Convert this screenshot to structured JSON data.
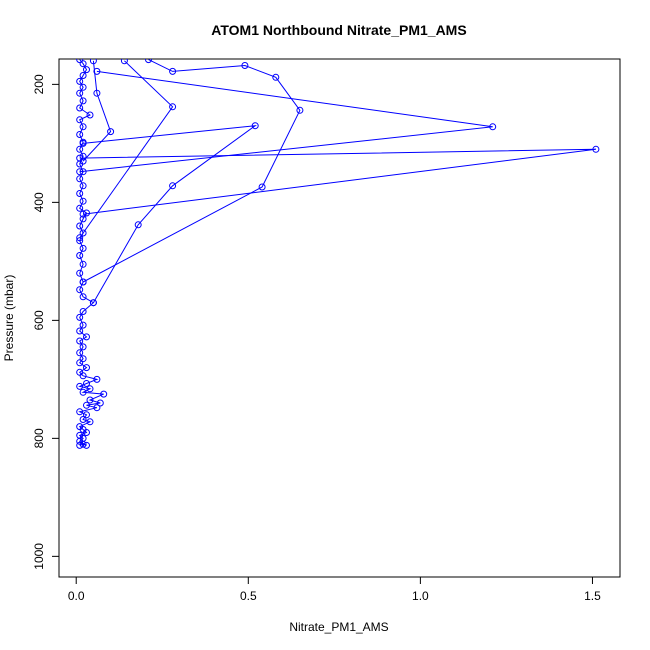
{
  "chart_data": {
    "type": "line",
    "title": "ATOM1 Northbound Nitrate_PM1_AMS",
    "xlabel": "Nitrate_PM1_AMS",
    "ylabel": "Pressure (mbar)",
    "xlim": [
      -0.05,
      1.58
    ],
    "ylim": [
      1035,
      157
    ],
    "y_reversed": true,
    "grid": false,
    "x_ticks": [
      {
        "value": 0,
        "label": "0.0"
      },
      {
        "value": 0.5,
        "label": "0.5"
      },
      {
        "value": 1.0,
        "label": "1.0"
      },
      {
        "value": 1.5,
        "label": "1.5"
      }
    ],
    "y_ticks": [
      {
        "value": 200,
        "label": "200"
      },
      {
        "value": 400,
        "label": "400"
      },
      {
        "value": 600,
        "label": "600"
      },
      {
        "value": 800,
        "label": "800"
      },
      {
        "value": 1000,
        "label": "1000"
      }
    ],
    "series_color": "#0000ff",
    "series": [
      {
        "points": [
          [
            0.01,
            812
          ],
          [
            0.02,
            810
          ],
          [
            0.03,
            812
          ],
          [
            0.01,
            805
          ],
          [
            0.02,
            800
          ],
          [
            0.01,
            795
          ],
          [
            0.03,
            790
          ],
          [
            0.02,
            785
          ],
          [
            0.01,
            780
          ],
          [
            0.04,
            772
          ],
          [
            0.02,
            768
          ],
          [
            0.03,
            760
          ],
          [
            0.01,
            755
          ],
          [
            0.06,
            748
          ],
          [
            0.03,
            744
          ],
          [
            0.07,
            740
          ],
          [
            0.04,
            735
          ],
          [
            0.08,
            725
          ],
          [
            0.02,
            722
          ],
          [
            0.04,
            716
          ],
          [
            0.01,
            712
          ],
          [
            0.03,
            707
          ],
          [
            0.06,
            700
          ],
          [
            0.02,
            694
          ],
          [
            0.01,
            688
          ],
          [
            0.03,
            680
          ],
          [
            0.01,
            672
          ],
          [
            0.02,
            665
          ],
          [
            0.01,
            655
          ],
          [
            0.02,
            645
          ],
          [
            0.01,
            635
          ],
          [
            0.03,
            628
          ],
          [
            0.01,
            618
          ],
          [
            0.02,
            608
          ],
          [
            0.01,
            595
          ],
          [
            0.02,
            585
          ],
          [
            0.05,
            570
          ],
          [
            0.02,
            560
          ],
          [
            0.01,
            548
          ],
          [
            0.02,
            535
          ],
          [
            0.01,
            520
          ],
          [
            0.02,
            505
          ],
          [
            0.01,
            490
          ],
          [
            0.02,
            478
          ],
          [
            0.01,
            465
          ],
          [
            0.02,
            452
          ],
          [
            0.01,
            440
          ],
          [
            0.02,
            428
          ],
          [
            0.03,
            418
          ],
          [
            0.01,
            410
          ],
          [
            0.02,
            398
          ],
          [
            0.01,
            385
          ],
          [
            0.02,
            372
          ],
          [
            0.01,
            360
          ],
          [
            0.02,
            348
          ],
          [
            0.01,
            335
          ],
          [
            0.02,
            322
          ],
          [
            0.01,
            310
          ],
          [
            0.02,
            298
          ],
          [
            0.01,
            285
          ],
          [
            0.02,
            272
          ],
          [
            0.01,
            260
          ],
          [
            0.04,
            252
          ],
          [
            0.01,
            240
          ],
          [
            0.02,
            228
          ],
          [
            0.01,
            215
          ],
          [
            0.02,
            205
          ],
          [
            0.01,
            195
          ],
          [
            0.02,
            185
          ],
          [
            0.03,
            175
          ],
          [
            0.02,
            165
          ],
          [
            0.01,
            158
          ]
        ]
      },
      {
        "points": [
          [
            0.02,
            420
          ],
          [
            1.51,
            310
          ],
          [
            0.01,
            325
          ]
        ]
      },
      {
        "points": [
          [
            0.01,
            348
          ],
          [
            1.21,
            272
          ],
          [
            0.06,
            178
          ]
        ]
      },
      {
        "points": [
          [
            0.02,
            535
          ],
          [
            0.54,
            374
          ],
          [
            0.65,
            244
          ],
          [
            0.58,
            188
          ],
          [
            0.49,
            168
          ],
          [
            0.28,
            178
          ],
          [
            0.21,
            158
          ]
        ]
      },
      {
        "points": [
          [
            0.05,
            570
          ],
          [
            0.18,
            438
          ],
          [
            0.28,
            372
          ],
          [
            0.52,
            270
          ],
          [
            0.02,
            300
          ]
        ]
      },
      {
        "points": [
          [
            0.01,
            460
          ],
          [
            0.28,
            238
          ],
          [
            0.14,
            160
          ]
        ]
      },
      {
        "points": [
          [
            0.02,
            330
          ],
          [
            0.1,
            280
          ],
          [
            0.06,
            215
          ],
          [
            0.05,
            160
          ]
        ]
      }
    ]
  }
}
